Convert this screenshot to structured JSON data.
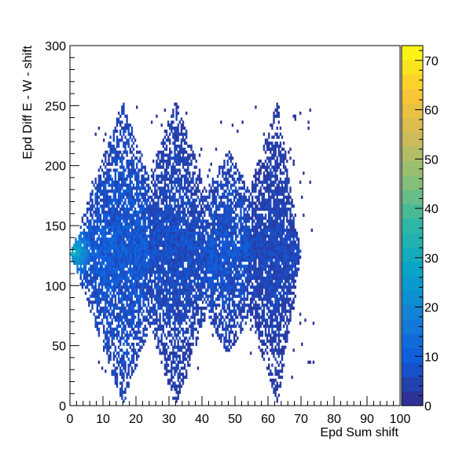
{
  "chart_data": {
    "type": "heatmap",
    "title": "",
    "xlabel": "Epd Sum shift",
    "ylabel": "Epd Diff E - W - shift",
    "xlim": [
      0,
      100
    ],
    "ylim": [
      0,
      300
    ],
    "zlim": [
      0,
      73
    ],
    "x_ticks": [
      "0",
      "10",
      "20",
      "30",
      "40",
      "50",
      "60",
      "70",
      "80",
      "90",
      "100"
    ],
    "y_ticks": [
      "0",
      "50",
      "100",
      "150",
      "200",
      "250",
      "300"
    ],
    "z_ticks": [
      "0",
      "10",
      "20",
      "30",
      "40",
      "50",
      "60",
      "70"
    ],
    "colormap": [
      "#352a87",
      "#0f5cdd",
      "#1481d6",
      "#06a4ca",
      "#2eb7a4",
      "#87bf77",
      "#d1bb59",
      "#fec832",
      "#f9fb0e"
    ],
    "bins": {
      "x_width": 0.5,
      "y_width": 2.5
    },
    "regions": [
      {
        "name": "diamond-1",
        "x_min": 0,
        "x_max": 32,
        "x_peak": 16,
        "y_low_at_peak": 0,
        "y_high_at_peak": 255,
        "y_center": 127,
        "typical_count": 8
      },
      {
        "name": "diamond-2",
        "x_min": 16,
        "x_max": 48,
        "x_peak": 32,
        "y_low_at_peak": 0,
        "y_high_at_peak": 255,
        "y_center": 127,
        "typical_count": 6
      },
      {
        "name": "diamond-3",
        "x_min": 32,
        "x_max": 64,
        "x_peak": 48,
        "y_low_at_peak": 40,
        "y_high_at_peak": 215,
        "y_center": 127,
        "typical_count": 7
      },
      {
        "name": "diamond-4",
        "x_min": 48,
        "x_max": 70,
        "x_peak": 63,
        "y_low_at_peak": 0,
        "y_high_at_peak": 255,
        "y_center": 127,
        "typical_count": 5
      }
    ],
    "hotspot": {
      "x": 1,
      "y": 128,
      "count": 30
    }
  }
}
